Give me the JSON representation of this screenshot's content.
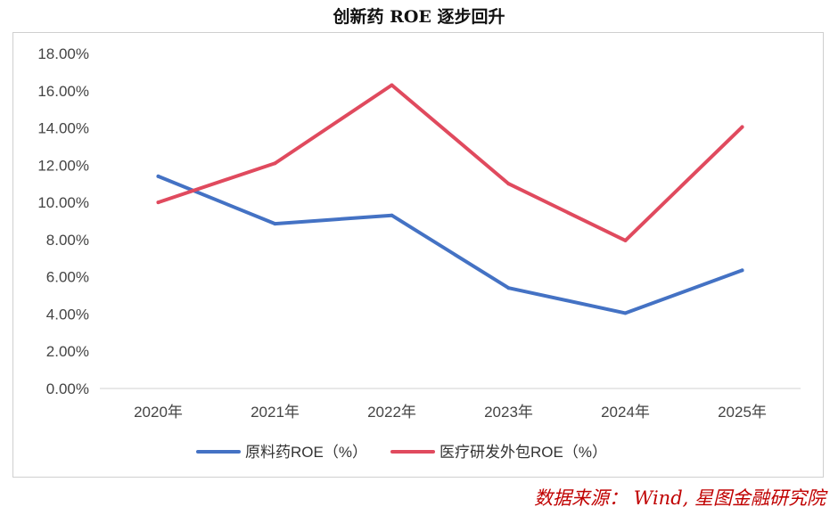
{
  "title": "创新药 ROE 逐步回升",
  "source": "数据来源： Wind, 星图金融研究院",
  "chart_data": {
    "type": "line",
    "title": "创新药 ROE 逐步回升",
    "categories": [
      "2020年",
      "2021年",
      "2022年",
      "2023年",
      "2024年",
      "2025年"
    ],
    "y_ticks": [
      "0.00%",
      "2.00%",
      "4.00%",
      "6.00%",
      "8.00%",
      "10.00%",
      "12.00%",
      "14.00%",
      "16.00%",
      "18.00%"
    ],
    "ylim": [
      0,
      18
    ],
    "grid": false,
    "legend_position": "bottom",
    "series": [
      {
        "name": "原料药ROE（%）",
        "color": "#4472c4",
        "values": [
          11.4,
          8.85,
          9.3,
          5.4,
          4.05,
          6.35
        ]
      },
      {
        "name": "医疗研发外包ROE（%）",
        "color": "#e04a5e",
        "values": [
          10.0,
          12.1,
          16.3,
          11.0,
          7.95,
          14.05
        ]
      }
    ]
  }
}
